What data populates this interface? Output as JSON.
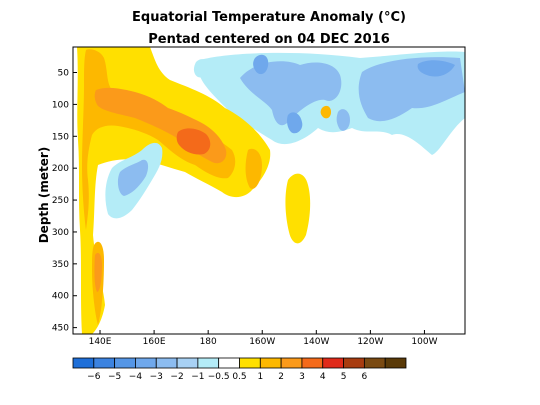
{
  "chart_data": {
    "type": "heatmap",
    "title": "Equatorial Temperature Anomaly (°C)",
    "subtitle": "Pentad centered on 04 DEC 2016",
    "ylabel": "Depth (meter)",
    "xlabel": "",
    "xlim": [
      130,
      275
    ],
    "ylim": [
      460,
      10
    ],
    "x_ticks": [
      {
        "value": 140,
        "label": "140E"
      },
      {
        "value": 160,
        "label": "160E"
      },
      {
        "value": 180,
        "label": "180"
      },
      {
        "value": 200,
        "label": "160W"
      },
      {
        "value": 220,
        "label": "140W"
      },
      {
        "value": 240,
        "label": "120W"
      },
      {
        "value": 260,
        "label": "100W"
      }
    ],
    "y_ticks": [
      50,
      100,
      150,
      200,
      250,
      300,
      350,
      400,
      450
    ],
    "colorbar": {
      "bins": [
        {
          "lo": -7,
          "hi": -6,
          "color": "#1f6fd8"
        },
        {
          "lo": -6,
          "hi": -5,
          "color": "#3c83e0"
        },
        {
          "lo": -5,
          "hi": -4,
          "color": "#5596e6"
        },
        {
          "lo": -4,
          "hi": -3,
          "color": "#6fa8ec"
        },
        {
          "lo": -3,
          "hi": -2,
          "color": "#8cbcf0"
        },
        {
          "lo": -2,
          "hi": -1,
          "color": "#a8d1f4"
        },
        {
          "lo": -1,
          "hi": -0.5,
          "color": "#b4ecf7"
        },
        {
          "lo": -0.5,
          "hi": 0.5,
          "color": "#ffffff"
        },
        {
          "lo": 0.5,
          "hi": 1,
          "color": "#ffe000"
        },
        {
          "lo": 1,
          "hi": 2,
          "color": "#fdb800"
        },
        {
          "lo": 2,
          "hi": 3,
          "color": "#fb9a1a"
        },
        {
          "lo": 3,
          "hi": 4,
          "color": "#f46a1a"
        },
        {
          "lo": 4,
          "hi": 5,
          "color": "#e02a1a"
        },
        {
          "lo": 5,
          "hi": 6,
          "color": "#a83c10"
        },
        {
          "lo": 6,
          "hi": 7,
          "color": "#7a4a12"
        },
        {
          "lo": 7,
          "hi": 8,
          "color": "#5a3a08"
        }
      ],
      "labels": [
        "−6",
        "−5",
        "−4",
        "−3",
        "−2",
        "−1",
        "−0.5",
        "0.5",
        "1",
        "2",
        "3",
        "4",
        "5",
        "6"
      ]
    },
    "anomaly_features": [
      {
        "region": "western warm tongue",
        "lon": [
          131,
          150
        ],
        "depth": [
          15,
          330
        ],
        "value": 1
      },
      {
        "region": "western deep warm core",
        "lon": [
          136,
          141
        ],
        "depth": [
          280,
          440
        ],
        "value": 2
      },
      {
        "region": "thermocline warm band",
        "lon": [
          140,
          190
        ],
        "depth": [
          70,
          170
        ],
        "value": 2
      },
      {
        "region": "central warm core",
        "lon": [
          173,
          186
        ],
        "depth": [
          130,
          165
        ],
        "value": 3
      },
      {
        "region": "dateline warm lobe",
        "lon": [
          192,
          198
        ],
        "depth": [
          145,
          210
        ],
        "value": 1
      },
      {
        "region": "warm lens",
        "lon": [
          212,
          218
        ],
        "depth": [
          185,
          300
        ],
        "value": 1
      },
      {
        "region": "cool patch",
        "lon": [
          150,
          162
        ],
        "depth": [
          150,
          250
        ],
        "value": -1
      },
      {
        "region": "eastern surface cool",
        "lon": [
          195,
          275
        ],
        "depth": [
          10,
          140
        ],
        "value": -1
      },
      {
        "region": "eastern cool core",
        "lon": [
          245,
          270
        ],
        "depth": [
          20,
          70
        ],
        "value": -2
      }
    ]
  }
}
